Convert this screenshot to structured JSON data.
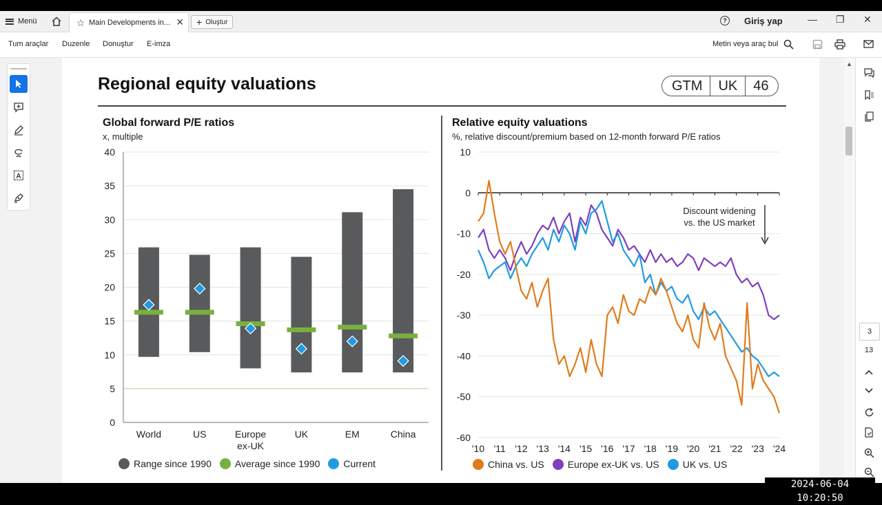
{
  "titlebar": {
    "menu_label": "Menü",
    "tab_title": "Main Developments in...",
    "new_label": "Oluştur",
    "login_label": "Giriş yap"
  },
  "toolbar": {
    "all_tools": "Tum araçlar",
    "edit": "Duzenle",
    "convert": "Donuştur",
    "esign": "E-imza",
    "search_label": "Metin veya araç bul"
  },
  "navigation": {
    "current_page": "3",
    "total_pages": "13"
  },
  "timestamp": "2024-06-04  10:20:50",
  "slide": {
    "title": "Regional equity valuations",
    "tags": [
      "GTM",
      "UK",
      "46"
    ]
  },
  "colors": {
    "range": "#595a5c",
    "average": "#7ab03f",
    "current": "#1f9ae3",
    "china": "#e07b1b",
    "europe": "#7e3fbf",
    "uk": "#1f9ae3"
  },
  "chart_data": [
    {
      "type": "bar",
      "title": "Global forward P/E ratios",
      "subtitle": "x, multiple",
      "categories": [
        "World",
        "US",
        "Europe ex-UK",
        "UK",
        "EM",
        "China"
      ],
      "ylim": [
        0,
        40
      ],
      "yticks": [
        0,
        5,
        10,
        15,
        20,
        25,
        30,
        35,
        40
      ],
      "series": [
        {
          "name": "Range since 1990",
          "low": [
            9.7,
            10.4,
            8.0,
            7.4,
            7.4,
            7.4
          ],
          "high": [
            25.9,
            24.8,
            25.9,
            24.5,
            31.1,
            34.5
          ]
        },
        {
          "name": "Average since 1990",
          "values": [
            16.3,
            16.3,
            14.6,
            13.7,
            14.1,
            12.8
          ]
        },
        {
          "name": "Current",
          "values": [
            17.4,
            19.8,
            13.9,
            10.9,
            12.0,
            9.1
          ]
        }
      ],
      "legend": [
        "Range since 1990",
        "Average since 1990",
        "Current"
      ]
    },
    {
      "type": "line",
      "title": "Relative equity valuations",
      "subtitle": "%, relative discount/premium based on 12-month forward P/E ratios",
      "xticks": [
        "'10",
        "'11",
        "'12",
        "'13",
        "'14",
        "'15",
        "'16",
        "'17",
        "'18",
        "'19",
        "'20",
        "'21",
        "'22",
        "'23",
        "'24"
      ],
      "ylim": [
        -60,
        10
      ],
      "yticks": [
        10,
        0,
        -10,
        -20,
        -30,
        -40,
        -50,
        -60
      ],
      "annotation": "Discount widening vs. the US market",
      "x": [
        2010.0,
        2010.25,
        2010.5,
        2010.75,
        2011.0,
        2011.25,
        2011.5,
        2011.75,
        2012.0,
        2012.25,
        2012.5,
        2012.75,
        2013.0,
        2013.25,
        2013.5,
        2013.75,
        2014.0,
        2014.25,
        2014.5,
        2014.75,
        2015.0,
        2015.25,
        2015.5,
        2015.75,
        2016.0,
        2016.25,
        2016.5,
        2016.75,
        2017.0,
        2017.25,
        2017.5,
        2017.75,
        2018.0,
        2018.25,
        2018.5,
        2018.75,
        2019.0,
        2019.25,
        2019.5,
        2019.75,
        2020.0,
        2020.25,
        2020.5,
        2020.75,
        2021.0,
        2021.25,
        2021.5,
        2021.75,
        2022.0,
        2022.25,
        2022.5,
        2022.75,
        2023.0,
        2023.25,
        2023.5,
        2023.75,
        2024.0
      ],
      "series": [
        {
          "name": "China vs. US",
          "values": [
            -7,
            -5,
            3,
            -5,
            -12,
            -15,
            -12,
            -18,
            -24,
            -26,
            -22,
            -28,
            -24,
            -21,
            -36,
            -42,
            -40,
            -45,
            -42,
            -38,
            -44,
            -36,
            -42,
            -45,
            -30,
            -28,
            -32,
            -25,
            -29,
            -30,
            -26,
            -27,
            -23,
            -25,
            -21,
            -24,
            -28,
            -32,
            -34,
            -30,
            -36,
            -38,
            -27,
            -33,
            -36,
            -32,
            -40,
            -43,
            -46,
            -52,
            -27,
            -48,
            -42,
            -46,
            -48,
            -50,
            -54
          ]
        },
        {
          "name": "Europe ex-UK vs. US",
          "values": [
            -11,
            -9,
            -14,
            -16,
            -14,
            -16,
            -19,
            -15,
            -12,
            -15,
            -13,
            -10,
            -8,
            -9,
            -6,
            -10,
            -7,
            -5,
            -12,
            -6,
            -8,
            -3,
            -5,
            -9,
            -11,
            -13,
            -9,
            -11,
            -14,
            -13,
            -15,
            -17,
            -14,
            -17,
            -15,
            -17,
            -16,
            -18,
            -17,
            -15,
            -16,
            -19,
            -16,
            -17,
            -18,
            -17,
            -18,
            -16,
            -20,
            -22,
            -21,
            -23,
            -22,
            -25,
            -30,
            -31,
            -30
          ]
        },
        {
          "name": "UK vs. US",
          "values": [
            -14,
            -17,
            -21,
            -19,
            -18,
            -17,
            -21,
            -18,
            -16,
            -18,
            -15,
            -13,
            -11,
            -14,
            -9,
            -12,
            -8,
            -10,
            -14,
            -7,
            -10,
            -5,
            -4,
            -2,
            -7,
            -12,
            -10,
            -14,
            -16,
            -18,
            -15,
            -22,
            -20,
            -25,
            -22,
            -24,
            -23,
            -26,
            -27,
            -25,
            -29,
            -31,
            -28,
            -30,
            -29,
            -31,
            -33,
            -35,
            -37,
            -39,
            -38,
            -40,
            -41,
            -43,
            -45,
            -44,
            -45
          ]
        }
      ],
      "legend": [
        "China vs. US",
        "Europe ex-UK vs. US",
        "UK vs. US"
      ]
    }
  ]
}
